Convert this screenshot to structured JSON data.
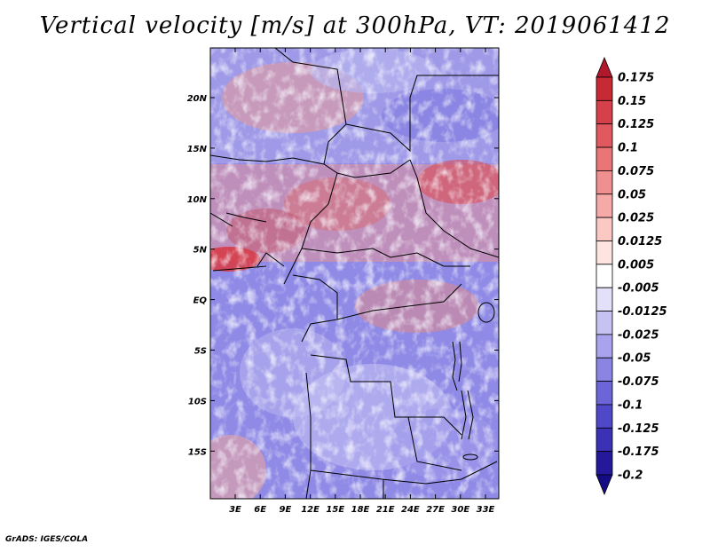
{
  "title": "Vertical velocity [m/s] at 300hPa, VT: 2019061412",
  "credit": "GrADS: IGES/COLA",
  "map": {
    "lat_labels": [
      "20N",
      "15N",
      "10N",
      "5N",
      "EQ",
      "5S",
      "10S",
      "15S"
    ],
    "lon_labels": [
      "3E",
      "6E",
      "9E",
      "12E",
      "15E",
      "18E",
      "21E",
      "24E",
      "27E",
      "30E",
      "33E"
    ]
  },
  "colorbar": {
    "labels": [
      "0.175",
      "0.15",
      "0.125",
      "0.1",
      "0.075",
      "0.05",
      "0.025",
      "0.0125",
      "0.005",
      "-0.005",
      "-0.0125",
      "-0.025",
      "-0.05",
      "-0.075",
      "-0.1",
      "-0.125",
      "-0.175",
      "-0.2"
    ],
    "colors": [
      "#b2182b",
      "#c62a35",
      "#d6404a",
      "#e0595f",
      "#e97577",
      "#f08f8f",
      "#f6aaa8",
      "#fbc8c4",
      "#fde4e1",
      "#ffffff",
      "#e3e1fa",
      "#c6c3f3",
      "#a8a3ec",
      "#8a84e3",
      "#6c65d8",
      "#4f48c9",
      "#3a31b4",
      "#24199b",
      "#150c85"
    ]
  }
}
